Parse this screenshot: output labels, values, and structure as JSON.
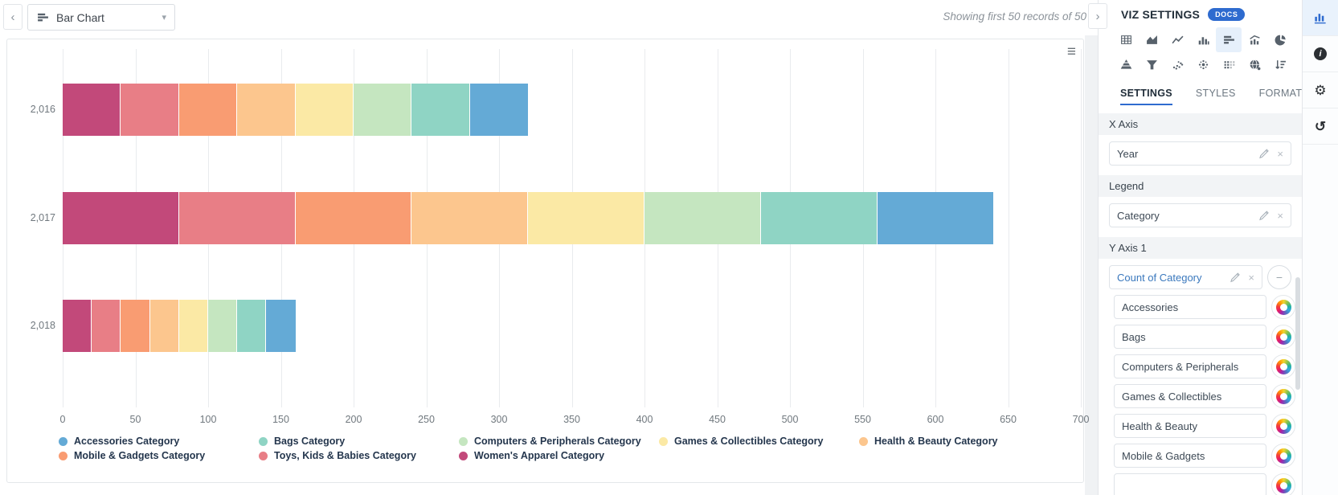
{
  "topbar": {
    "chart_selector_value": "Bar Chart",
    "records_note": "Showing first 50 records of 50"
  },
  "icons": {
    "chevron_left": "‹",
    "chevron_right": "›",
    "caret_down": "▾",
    "menu": "≡",
    "close": "×",
    "minus": "−",
    "gear": "⚙",
    "history": "↺",
    "info": "i"
  },
  "chart_data": {
    "type": "bar",
    "orientation": "horizontal",
    "stacked": true,
    "categories": [
      "2,016",
      "2,017",
      "2,018"
    ],
    "series": [
      {
        "name": "Women's Apparel Category",
        "color": "#c2497a",
        "values": [
          40,
          80,
          20
        ]
      },
      {
        "name": "Toys, Kids & Babies Category",
        "color": "#e87e86",
        "values": [
          40,
          80,
          20
        ]
      },
      {
        "name": "Mobile & Gadgets Category",
        "color": "#f99c72",
        "values": [
          40,
          80,
          20
        ]
      },
      {
        "name": "Health & Beauty Category",
        "color": "#fcc68e",
        "values": [
          40,
          80,
          20
        ]
      },
      {
        "name": "Games & Collectibles Category",
        "color": "#fbe9a5",
        "values": [
          40,
          80,
          20
        ]
      },
      {
        "name": "Computers & Peripherals Category",
        "color": "#c5e6c0",
        "values": [
          40,
          80,
          20
        ]
      },
      {
        "name": "Bags Category",
        "color": "#8fd4c4",
        "values": [
          40,
          80,
          20
        ]
      },
      {
        "name": "Accessories Category",
        "color": "#64aad6",
        "values": [
          40,
          80,
          20
        ]
      }
    ],
    "legend_order": [
      "Accessories Category",
      "Bags Category",
      "Computers & Peripherals Category",
      "Games & Collectibles Category",
      "Health & Beauty Category",
      "Mobile & Gadgets Category",
      "Toys, Kids & Babies Category",
      "Women's Apparel Category"
    ],
    "xlim": [
      0,
      700
    ],
    "x_ticks": [
      0,
      50,
      100,
      150,
      200,
      250,
      300,
      350,
      400,
      450,
      500,
      550,
      600,
      650,
      700
    ],
    "grid": true,
    "legend_position": "bottom",
    "title": "",
    "xlabel": "",
    "ylabel": ""
  },
  "panel": {
    "title": "VIZ SETTINGS",
    "docs_badge": "DOCS",
    "accent_color": "#2e6bcf",
    "chart_type_rows": [
      [
        {
          "name": "table"
        },
        {
          "name": "area-chart"
        },
        {
          "name": "line-chart"
        },
        {
          "name": "bar-chart-vertical"
        },
        {
          "name": "bar-chart-horizontal",
          "selected": true
        },
        {
          "name": "combo-chart"
        },
        {
          "name": "pie-chart"
        }
      ],
      [
        {
          "name": "pyramid-chart"
        },
        {
          "name": "funnel-chart"
        },
        {
          "name": "scatter-plot"
        },
        {
          "name": "scatter-cluster"
        },
        {
          "name": "dot-matrix"
        },
        {
          "name": "map-globe"
        },
        {
          "name": "sort-ranking"
        }
      ]
    ],
    "tabs": [
      {
        "label": "SETTINGS",
        "active": true
      },
      {
        "label": "STYLES",
        "active": false
      },
      {
        "label": "FORMAT",
        "active": false
      }
    ],
    "sections": [
      {
        "label": "X Axis",
        "fields": [
          {
            "value": "Year"
          }
        ]
      },
      {
        "label": "Legend",
        "fields": [
          {
            "value": "Category"
          }
        ]
      },
      {
        "label": "Y Axis 1",
        "fields": [
          {
            "value": "Count of Category",
            "accent": true,
            "axis_remove_button": true
          }
        ],
        "sub_items": [
          "Accessories",
          "Bags",
          "Computers & Peripherals",
          "Games & Collectibles",
          "Health & Beauty",
          "Mobile & Gadgets"
        ],
        "partial_next_item": true
      }
    ]
  },
  "toolbar": {
    "items": [
      {
        "name": "chart-panel",
        "selected": true
      },
      {
        "name": "info"
      },
      {
        "name": "settings"
      },
      {
        "name": "history"
      }
    ]
  }
}
